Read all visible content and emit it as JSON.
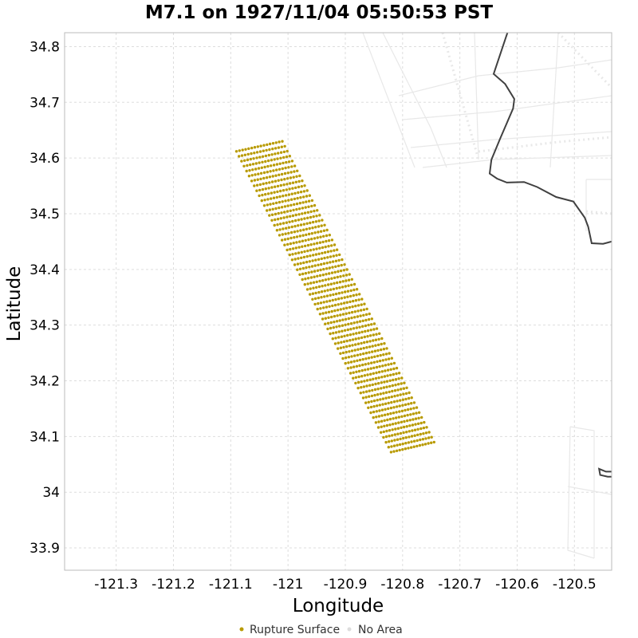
{
  "chart_data": {
    "type": "scatter",
    "title": "M7.1 on 1927/11/04 05:50:53 PST",
    "xlabel": "Longitude",
    "ylabel": "Latitude",
    "xlim": [
      -121.39,
      -120.435
    ],
    "ylim": [
      33.86,
      34.825
    ],
    "xticks": [
      -121.3,
      -121.2,
      -121.1,
      -121.0,
      -120.9,
      -120.8,
      -120.7,
      -120.6,
      -120.5
    ],
    "xtick_labels": [
      "-121.3",
      "-121.2",
      "-121.1",
      "-121",
      "-120.9",
      "-120.8",
      "-120.7",
      "-120.6",
      "-120.5"
    ],
    "yticks": [
      33.9,
      34.0,
      34.1,
      34.2,
      34.3,
      34.4,
      34.5,
      34.6,
      34.7,
      34.8
    ],
    "ytick_labels": [
      "33.9",
      "34",
      "34.1",
      "34.2",
      "34.3",
      "34.4",
      "34.5",
      "34.6",
      "34.7",
      "34.8"
    ],
    "grid": true,
    "legend_position": "bottom",
    "series": [
      {
        "name": "Rupture Surface",
        "color": "#b89a00",
        "rupture_corners": {
          "top_west": [
            -121.09,
            34.612
          ],
          "top_east": [
            -121.01,
            34.63
          ],
          "bottom_west": [
            -120.82,
            34.072
          ],
          "bottom_east": [
            -120.745,
            34.09
          ]
        }
      },
      {
        "name": "No Area",
        "color": "#dddddd"
      }
    ],
    "coastline": {
      "color": "#404040",
      "segments": [
        [
          [
            -120.617,
            34.825
          ],
          [
            -120.641,
            34.751
          ],
          [
            -120.621,
            34.733
          ],
          [
            -120.605,
            34.706
          ],
          [
            -120.607,
            34.689
          ],
          [
            -120.63,
            34.634
          ],
          [
            -120.645,
            34.597
          ],
          [
            -120.648,
            34.572
          ],
          [
            -120.635,
            34.563
          ],
          [
            -120.618,
            34.556
          ],
          [
            -120.588,
            34.557
          ],
          [
            -120.565,
            34.548
          ],
          [
            -120.532,
            34.53
          ],
          [
            -120.502,
            34.522
          ],
          [
            -120.482,
            34.493
          ],
          [
            -120.476,
            34.477
          ],
          [
            -120.47,
            34.447
          ],
          [
            -120.45,
            34.446
          ],
          [
            -120.435,
            34.45
          ]
        ],
        [
          [
            -120.435,
            34.037
          ],
          [
            -120.445,
            34.037
          ],
          [
            -120.457,
            34.042
          ],
          [
            -120.455,
            34.031
          ],
          [
            -120.442,
            34.028
          ],
          [
            -120.435,
            34.028
          ]
        ]
      ]
    },
    "background_map_color": "#eeeeee"
  }
}
